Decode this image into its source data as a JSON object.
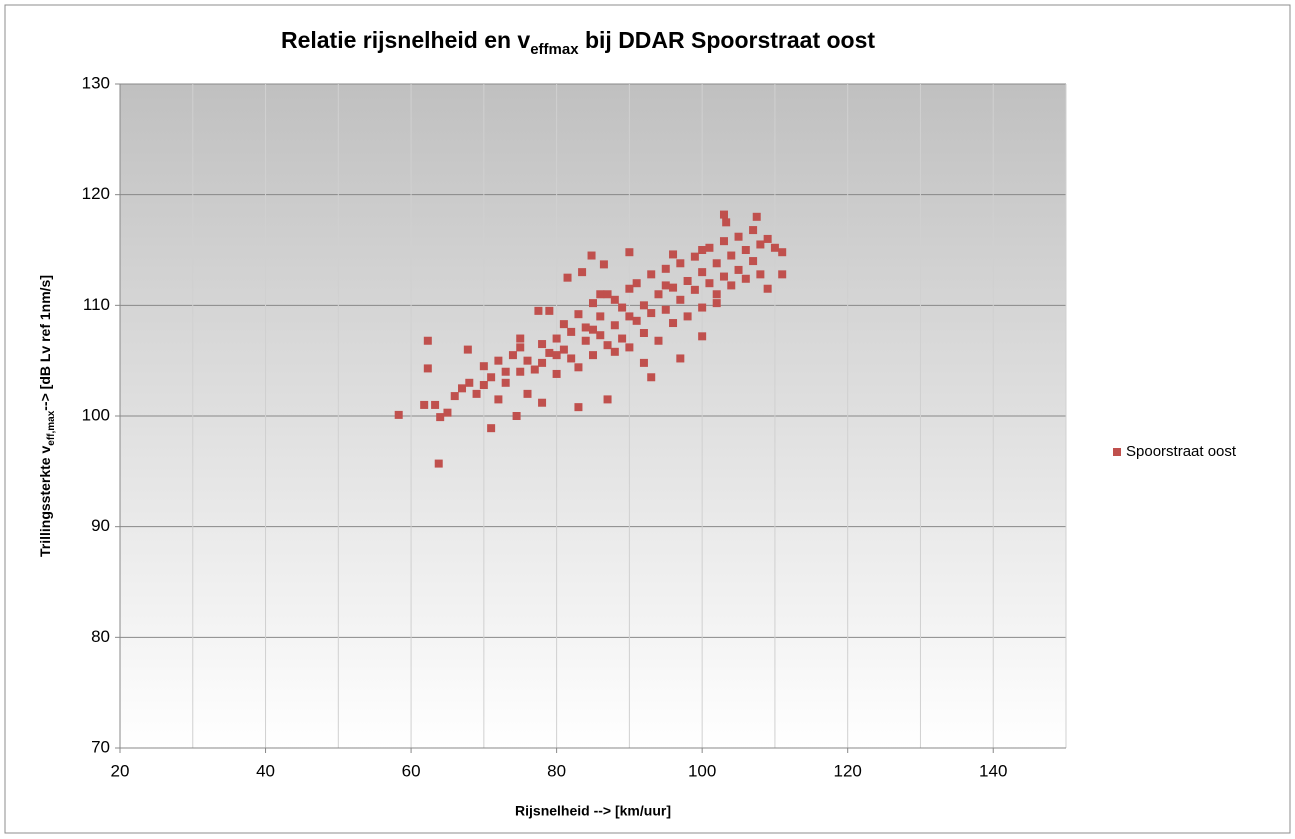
{
  "chart_data": {
    "type": "scatter",
    "title": [
      "Relatie rijsnelheid en  v",
      "effmax",
      " bij DDAR Spoorstraat oost"
    ],
    "x_label": "Rijsnelheid --> [km/uur]",
    "y_label": [
      "Trillingssterkte v",
      "eff,max",
      "--> [dB Lv ref 1nm/s]"
    ],
    "xlim": [
      20,
      150
    ],
    "xticks": [
      20,
      40,
      60,
      80,
      100,
      120,
      140
    ],
    "xgrid_minor": [
      30,
      50,
      70,
      90,
      110,
      130,
      150
    ],
    "ylim": [
      70,
      130
    ],
    "yticks": [
      70,
      80,
      90,
      100,
      110,
      120,
      130
    ],
    "grid": true,
    "legend": "right",
    "series": [
      {
        "name": "Spoorstraat oost",
        "color": "#c0504d",
        "x": [
          58.3,
          62.3,
          62.3,
          63.8,
          61.8,
          63.3,
          64,
          65,
          67.8,
          71,
          74.5,
          78,
          81.5,
          83.5,
          84.8,
          86.5,
          90,
          100,
          103.3,
          103,
          107.5,
          111,
          111,
          109,
          102,
          97,
          93,
          83,
          87,
          73,
          75,
          77.5,
          79,
          86,
          66,
          67,
          68,
          69,
          70,
          70,
          71,
          72,
          72,
          73,
          74,
          75,
          75,
          76,
          77,
          78,
          78,
          79,
          80,
          80,
          81,
          81,
          82,
          82,
          83,
          83,
          84,
          84,
          85,
          85,
          86,
          86,
          87,
          87,
          88,
          88,
          89,
          89,
          90,
          90,
          91,
          91,
          92,
          92,
          93,
          93,
          94,
          94,
          95,
          95,
          96,
          96,
          97,
          97,
          98,
          98,
          99,
          99,
          100,
          100,
          101,
          101,
          102,
          102,
          103,
          103,
          104,
          104,
          105,
          105,
          106,
          106,
          107,
          107,
          108,
          108,
          109,
          110,
          85,
          90,
          95,
          100,
          88,
          92,
          96,
          80,
          76
        ],
        "values": [
          100.1,
          106.8,
          104.3,
          95.7,
          101,
          101,
          99.9,
          100.3,
          106,
          98.9,
          100,
          101.2,
          112.5,
          113,
          114.5,
          113.7,
          114.8,
          107.2,
          117.5,
          118.2,
          118,
          112.8,
          114.8,
          111.5,
          110.2,
          105.2,
          103.5,
          100.8,
          101.5,
          104,
          107,
          109.5,
          109.5,
          111,
          101.8,
          102.5,
          103,
          102,
          104.5,
          102.8,
          103.5,
          105,
          101.5,
          103,
          105.5,
          104,
          106.2,
          105,
          104.2,
          106.5,
          104.8,
          105.7,
          107,
          103.8,
          106,
          108.3,
          105.2,
          107.6,
          104.4,
          109.2,
          106.8,
          108,
          105.5,
          110.2,
          107.3,
          109,
          106.4,
          111,
          108.2,
          105.8,
          109.8,
          107,
          111.5,
          106.2,
          108.6,
          112,
          110,
          107.5,
          112.8,
          109.3,
          111,
          106.8,
          113.3,
          109.6,
          111.6,
          108.4,
          113.8,
          110.5,
          112.2,
          109,
          114.4,
          111.4,
          113,
          109.8,
          115.2,
          112,
          113.8,
          111,
          115.8,
          112.6,
          114.5,
          111.8,
          116.2,
          113.2,
          115,
          112.4,
          116.8,
          114,
          115.5,
          112.8,
          116,
          115.2,
          107.8,
          109,
          111.8,
          115,
          110.5,
          104.8,
          114.6,
          105.5,
          102
        ]
      }
    ]
  }
}
